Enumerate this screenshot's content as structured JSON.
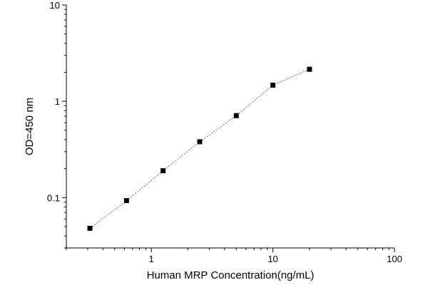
{
  "chart_data": {
    "type": "line",
    "xlabel": "Human MRP Concentration(ng/mL)",
    "ylabel": "OD=450 nm",
    "x_scale": "log",
    "y_scale": "log",
    "xlim": [
      0.2,
      100
    ],
    "ylim": [
      0.03,
      10
    ],
    "x_ticks": [
      {
        "value": 1,
        "label": "1"
      },
      {
        "value": 10,
        "label": "10"
      },
      {
        "value": 100,
        "label": "100"
      }
    ],
    "y_ticks": [
      {
        "value": 0.1,
        "label": "0.1"
      },
      {
        "value": 1,
        "label": "1"
      },
      {
        "value": 10,
        "label": "10"
      }
    ],
    "grid": false,
    "marker": "square",
    "line_style": "dashed",
    "series": [
      {
        "x": [
          0.3125,
          0.625,
          1.25,
          2.5,
          5,
          10,
          20
        ],
        "y": [
          0.048,
          0.093,
          0.19,
          0.38,
          0.71,
          1.47,
          2.15
        ]
      }
    ]
  }
}
